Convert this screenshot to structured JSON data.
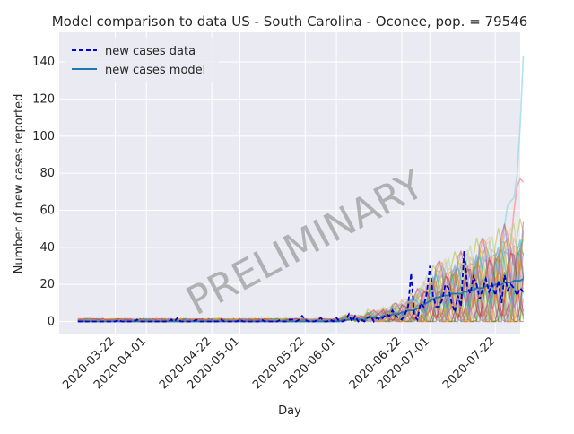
{
  "chart_data": {
    "type": "line",
    "title": "Model comparison to data US - South Carolina - Oconee, pop. = 79546",
    "xlabel": "Day",
    "ylabel": "Number of new cases reported",
    "watermark": "PRELIMINARY",
    "x_start": "2020-03-10",
    "x_end": "2020-07-24",
    "xlim": [
      "2020-03-04",
      "2020-07-30"
    ],
    "ylim": [
      -7,
      156
    ],
    "yticks": [
      0,
      20,
      40,
      60,
      80,
      100,
      120,
      140
    ],
    "xtick_labels": [
      "2020-03-22",
      "2020-04-01",
      "2020-04-22",
      "2020-05-01",
      "2020-05-22",
      "2020-06-01",
      "2020-06-22",
      "2020-07-01",
      "2020-07-22"
    ],
    "xtick_dates": [
      "2020-03-22",
      "2020-04-01",
      "2020-04-22",
      "2020-05-01",
      "2020-05-22",
      "2020-06-01",
      "2020-06-22",
      "2020-07-01",
      "2020-07-22"
    ],
    "grid": true,
    "legend_position": "top-left",
    "legend": [
      {
        "label": "new cases data",
        "style": "dashed",
        "color": "#0000cc"
      },
      {
        "label": "new cases model",
        "style": "solid",
        "color": "#1f77b4"
      }
    ],
    "series": [
      {
        "name": "new cases data",
        "color": "#0000cc",
        "style": "dashed",
        "values": [
          0,
          0,
          0,
          0,
          0,
          0,
          0,
          0,
          0,
          0,
          0,
          0,
          0,
          1,
          0,
          0,
          0,
          0,
          0,
          1,
          0,
          0,
          0,
          0,
          0,
          0,
          0,
          0,
          0,
          0,
          1,
          0,
          2,
          0,
          0,
          0,
          0,
          0,
          1,
          0,
          0,
          0,
          0,
          0,
          0,
          0,
          1,
          0,
          0,
          0,
          0,
          0,
          1,
          0,
          0,
          0,
          0,
          0,
          0,
          1,
          0,
          0,
          0,
          0,
          0,
          1,
          0,
          0,
          1,
          1,
          0,
          1,
          3,
          1,
          0,
          0,
          0,
          1,
          2,
          0,
          0,
          1,
          0,
          2,
          0,
          0,
          1,
          4,
          0,
          3,
          0,
          1,
          0,
          2,
          3,
          0,
          2,
          1,
          2,
          4,
          3,
          6,
          3,
          2,
          1,
          4,
          8,
          26,
          3,
          1,
          10,
          8,
          15,
          30,
          14,
          8,
          8,
          12,
          20,
          18,
          10,
          5,
          14,
          8,
          38,
          19,
          15,
          24,
          20,
          12,
          18,
          23,
          16,
          20,
          14,
          22,
          10,
          25,
          17,
          20,
          18,
          14,
          18,
          16
        ]
      },
      {
        "name": "new cases model",
        "color": "#1f77b4",
        "style": "solid",
        "values": [
          0,
          0,
          0,
          0,
          0,
          0,
          0,
          0,
          0,
          0,
          0,
          0,
          0,
          0,
          0,
          0,
          0,
          0,
          0,
          0,
          0,
          0,
          0,
          0,
          0,
          0,
          0,
          0,
          0,
          0,
          0,
          0,
          0,
          0,
          0,
          0,
          0,
          0,
          0,
          0,
          0,
          0,
          0,
          0,
          0,
          0,
          0,
          0,
          0,
          0,
          0,
          0,
          0,
          0,
          0,
          0,
          0,
          0,
          0,
          0,
          0,
          0,
          0,
          0,
          0,
          0,
          0,
          0,
          0,
          0,
          0,
          0,
          0,
          0,
          0,
          0,
          0,
          0,
          0,
          0,
          0,
          0,
          0,
          0,
          0,
          1,
          1,
          1,
          1,
          1,
          1,
          1,
          1,
          2,
          2,
          2,
          2,
          2,
          3,
          3,
          3,
          4,
          4,
          4,
          5,
          5,
          6,
          6,
          6,
          7,
          8,
          9,
          10,
          11,
          12,
          13,
          13,
          14,
          14,
          14,
          15,
          15,
          15,
          15,
          16,
          16,
          17,
          17,
          18,
          18,
          18,
          19,
          19,
          19,
          20,
          20,
          20,
          21,
          21,
          21,
          22,
          22,
          22,
          23
        ]
      }
    ]
  }
}
